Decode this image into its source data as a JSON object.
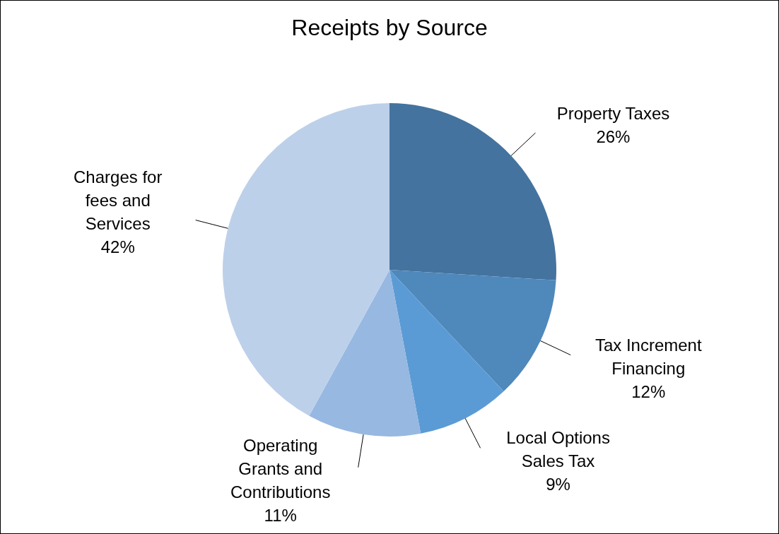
{
  "chart_data": {
    "type": "pie",
    "title": "Receipts by Source",
    "categories": [
      "Property Taxes",
      "Tax Increment Financing",
      "Local Options Sales Tax",
      "Operating Grants and Contributions",
      "Charges for fees and Services"
    ],
    "values": [
      26,
      12,
      9,
      11,
      42
    ],
    "value_labels": [
      "26%",
      "12%",
      "9%",
      "11%",
      "42%"
    ],
    "colors": [
      "#44739f",
      "#4f88bb",
      "#5b9bd5",
      "#97b8e0",
      "#bdd0ea"
    ],
    "legend": false
  }
}
